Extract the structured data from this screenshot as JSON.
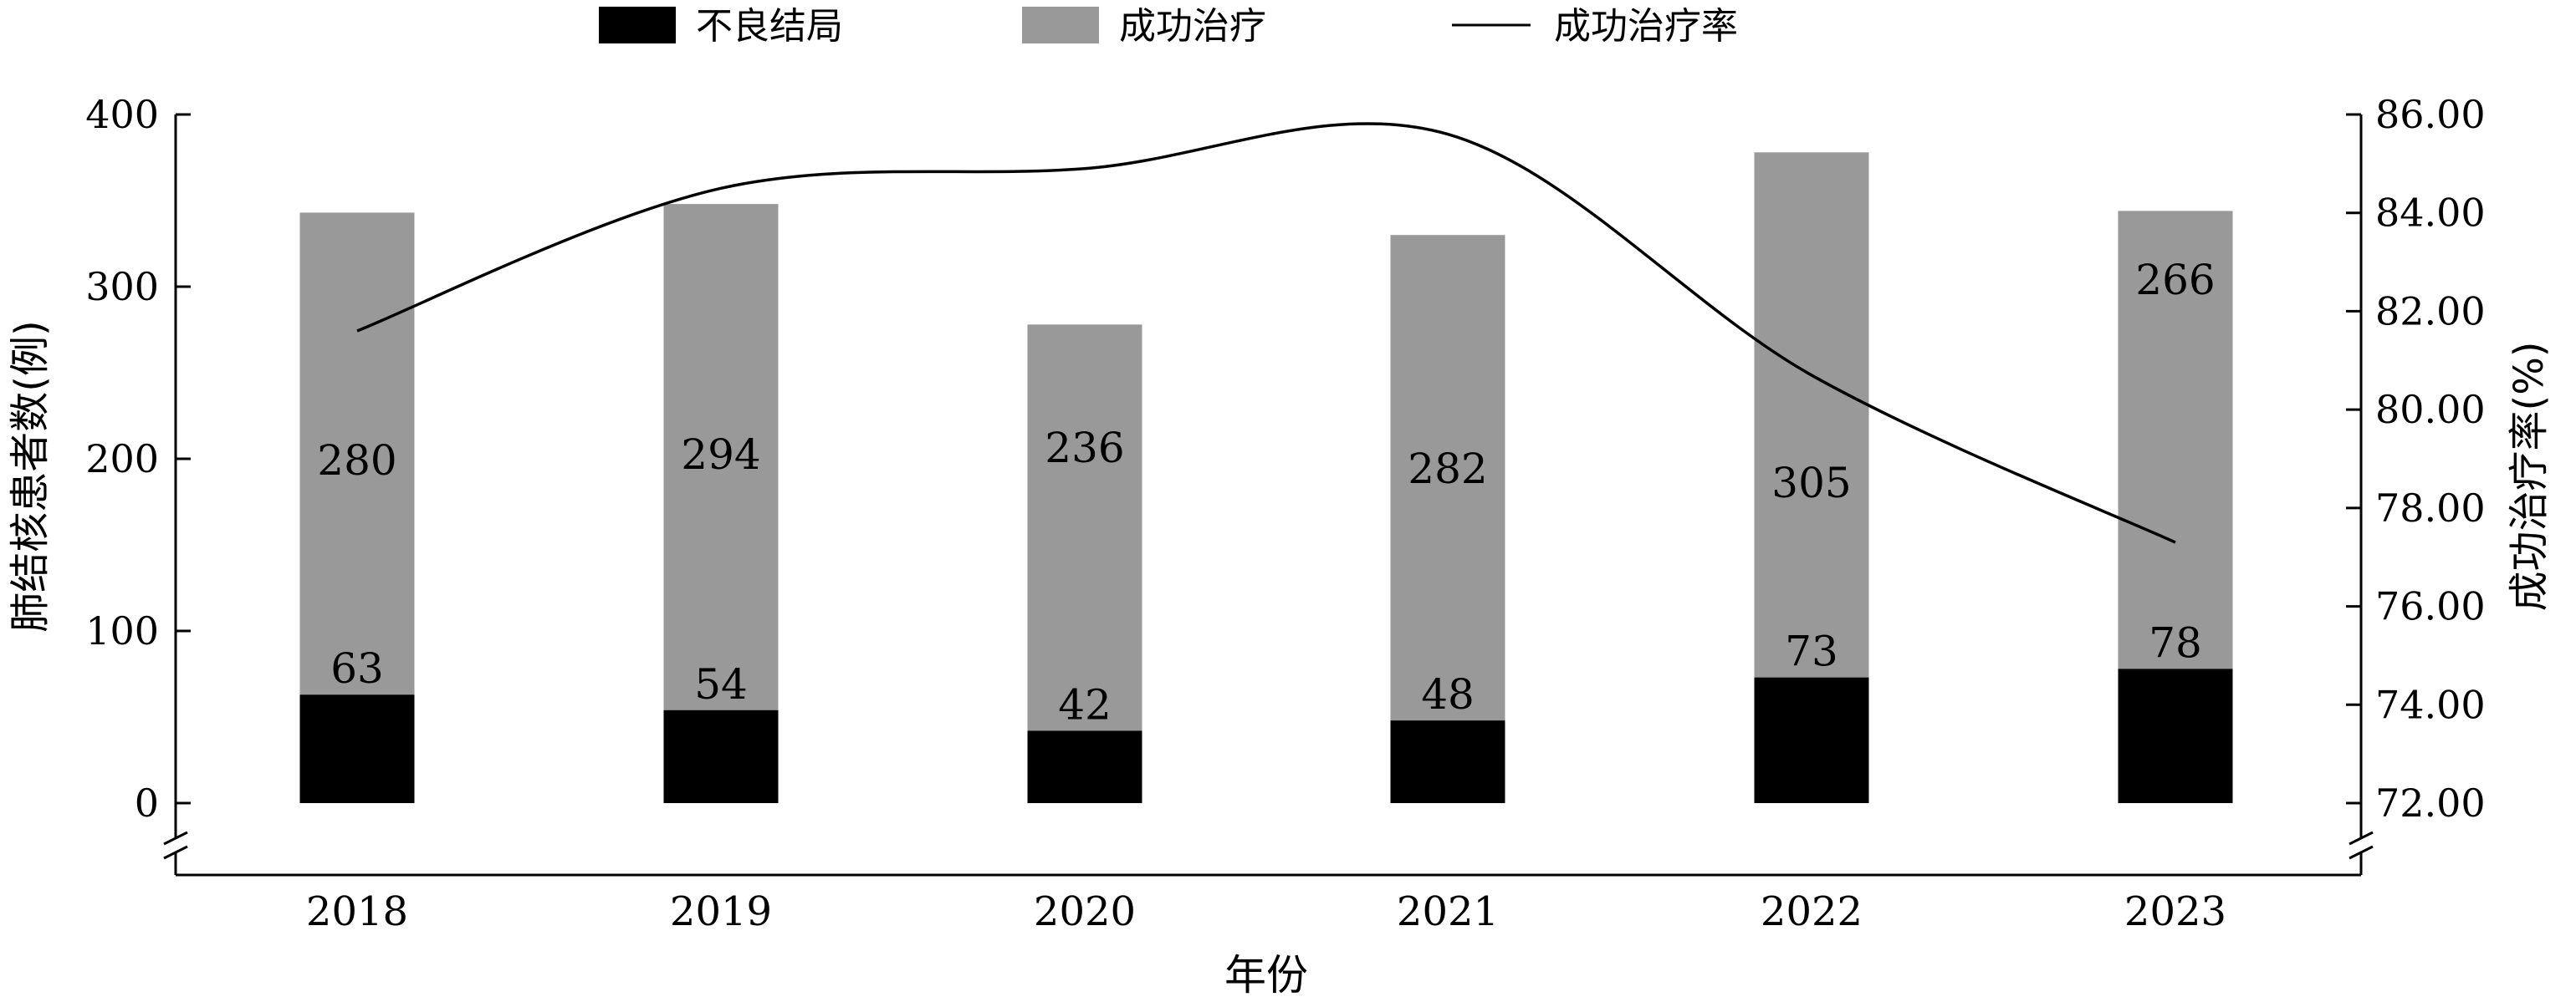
{
  "chart_data": {
    "type": "bar",
    "categories": [
      "2018",
      "2019",
      "2020",
      "2021",
      "2022",
      "2023"
    ],
    "series": [
      {
        "name": "不良结局",
        "type": "stacked-bar",
        "axis": "left",
        "color": "#000000",
        "values": [
          63,
          54,
          42,
          48,
          73,
          78
        ]
      },
      {
        "name": "成功治疗",
        "type": "stacked-bar",
        "axis": "left",
        "color": "#999999",
        "values": [
          280,
          294,
          236,
          282,
          305,
          266
        ]
      },
      {
        "name": "成功治疗率",
        "type": "line",
        "axis": "right",
        "color": "#000000",
        "values": [
          81.6,
          84.5,
          84.9,
          85.6,
          80.7,
          77.3
        ]
      }
    ],
    "xlabel": "年份",
    "ylabel_left": "肺结核患者数(例)",
    "ylabel_right": "成功治疗率(%)",
    "ylim_left": [
      0,
      400
    ],
    "ylim_right": [
      72,
      86
    ],
    "yticks_left": [
      "0",
      "100",
      "200",
      "300",
      "400"
    ],
    "yticks_right": [
      "72.00",
      "74.00",
      "76.00",
      "78.00",
      "80.00",
      "82.00",
      "84.00",
      "86.00"
    ],
    "data_labels_bad": [
      "63",
      "54",
      "42",
      "48",
      "73",
      "78"
    ],
    "data_labels_success": [
      "280",
      "294",
      "236",
      "282",
      "305",
      "266"
    ],
    "legend_position": "top-center",
    "grid": false
  }
}
